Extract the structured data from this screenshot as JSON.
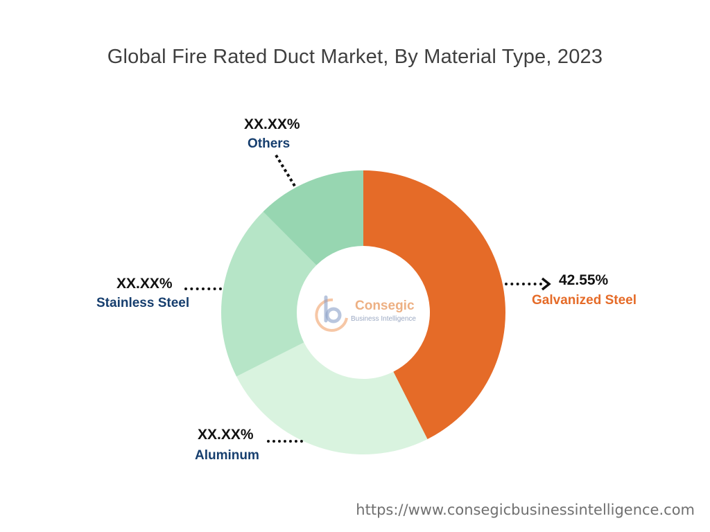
{
  "chart_data": {
    "type": "pie",
    "title": "Global Fire Rated Duct Market, By Material Type, 2023",
    "categories": [
      "Galvanized Steel",
      "Aluminum",
      "Stainless Steel",
      "Others"
    ],
    "values": [
      42.55,
      25,
      20,
      12.45
    ],
    "data_labels": [
      "42.55%",
      "XX.XX%",
      "XX.XX%",
      "XX.XX%"
    ],
    "colors": [
      "#e56b28",
      "#d9f3df",
      "#b6e5c7",
      "#97d6b1"
    ],
    "label_colors": [
      "#e56b28",
      "#163e6e",
      "#163e6e",
      "#163e6e"
    ]
  },
  "watermark": {
    "name": "Consegic",
    "tagline": "Business Intelligence"
  },
  "footer": {
    "url": "https://www.consegicbusinessintelligence.com"
  }
}
